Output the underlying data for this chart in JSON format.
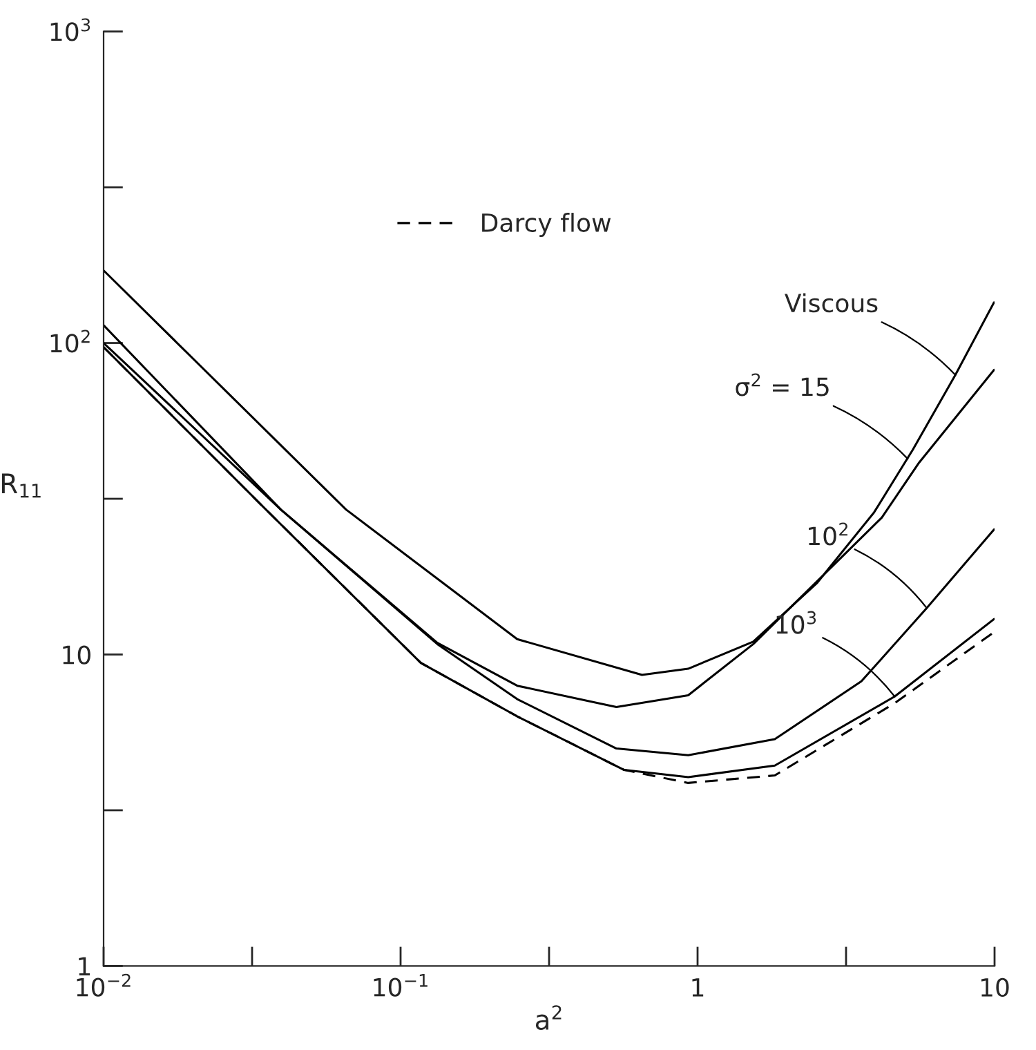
{
  "chart_data": {
    "type": "line",
    "xlabel": "a$^{2}$",
    "ylabel": "R$_{11}$",
    "log": "xy",
    "xlim": [
      0.01,
      10
    ],
    "ylim": [
      1,
      1000
    ],
    "xticks": [
      {
        "value": 0.01,
        "label": "10$^{−2}$"
      },
      {
        "value": 0.03162,
        "label": null
      },
      {
        "value": 0.1,
        "label": "10$^{−1}$"
      },
      {
        "value": 0.3162,
        "label": null
      },
      1,
      {
        "value": 3.162,
        "label": null
      },
      10
    ],
    "yticks": [
      1,
      {
        "value": 3.162,
        "label": null
      },
      10,
      {
        "value": 31.62,
        "label": null
      },
      {
        "value": 100,
        "label": "10$^{2}$"
      },
      {
        "value": 316.2,
        "label": null
      },
      {
        "value": 1000,
        "label": "10$^{3}$"
      }
    ],
    "grid": false,
    "legend": "top",
    "marker": "none",
    "series": [
      {
        "color": "#000000",
        "line_style": "solid",
        "x": [
          0.01,
          0.0655,
          0.247,
          0.65,
          0.93,
          1.54,
          2.53,
          3.93,
          5.31,
          7.38,
          9.96
        ],
        "values": [
          171,
          29.2,
          11.2,
          8.6,
          9.0,
          11.0,
          17.0,
          28.6,
          45.5,
          79,
          135
        ]
      },
      {
        "color": "#000000",
        "line_style": "solid",
        "x": [
          0.01,
          0.0395,
          0.133,
          0.247,
          0.533,
          0.93,
          1.54,
          4.17,
          5.57,
          9.96
        ],
        "values": [
          114,
          29.2,
          10.9,
          7.94,
          6.78,
          7.4,
          10.8,
          27.5,
          41.3,
          82
        ]
      },
      {
        "color": "#000000",
        "line_style": "solid",
        "x": [
          0.01,
          0.0395,
          0.133,
          0.247,
          0.533,
          0.93,
          1.82,
          3.56,
          5.91,
          9.96
        ],
        "values": [
          100,
          29.2,
          10.8,
          7.19,
          4.99,
          4.75,
          5.35,
          8.2,
          14.1,
          25.2
        ]
      },
      {
        "color": "#000000",
        "line_style": "solid",
        "x": [
          0.01,
          0.0352,
          0.117,
          0.247,
          0.566,
          0.93,
          1.82,
          4.61,
          9.96
        ],
        "values": [
          97,
          29.2,
          9.4,
          6.33,
          4.26,
          4.04,
          4.4,
          7.33,
          13.0
        ]
      },
      {
        "name": "Darcy flow",
        "color": "#000000",
        "line_style": "dashed",
        "x": [
          0.01,
          0.0352,
          0.117,
          0.247,
          0.566,
          0.93,
          1.82,
          4.61,
          9.96
        ],
        "values": [
          97,
          29.2,
          9.4,
          6.33,
          4.26,
          3.87,
          4.09,
          6.98,
          11.8
        ]
      }
    ],
    "annotations": [
      {
        "text": "Viscous",
        "x": 7.38,
        "y": 79
      },
      {
        "text": "σ$^{2}$ = 15",
        "x": 5.1,
        "y": 42.5
      },
      {
        "text": "10$^{2}$",
        "x": 5.91,
        "y": 14.1
      },
      {
        "text": "10$^{3}$",
        "x": 4.61,
        "y": 7.33
      }
    ]
  }
}
